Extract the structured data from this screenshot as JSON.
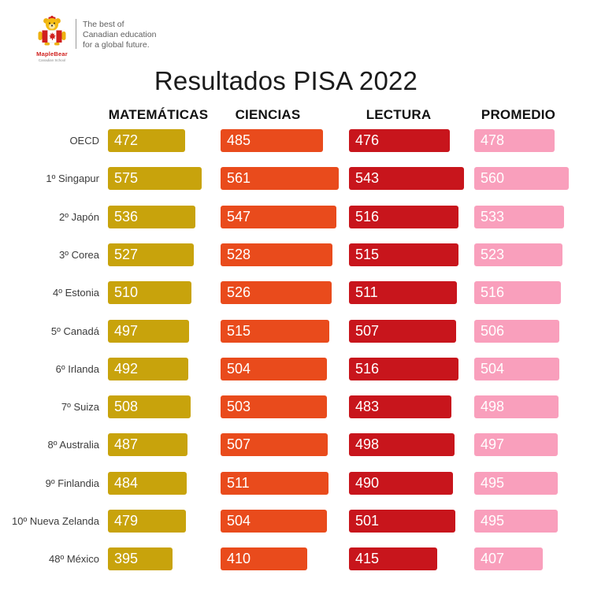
{
  "logo": {
    "brand": "MapleBear",
    "sub_brand": "Canadian School",
    "tagline_line1": "The best of",
    "tagline_line2": "Canadian education",
    "tagline_line3": "for a global future."
  },
  "title": "Resultados PISA 2022",
  "chart_data": {
    "type": "bar",
    "orientation": "horizontal",
    "title": "Resultados PISA 2022",
    "xlabel": "",
    "ylabel": "",
    "legend_position": "top",
    "grid": false,
    "value_labels": "inside-left",
    "categories": [
      "OECD",
      "1º Singapur",
      "2º Japón",
      "3º Corea",
      "4º Estonia",
      "5º Canadá",
      "6º Irlanda",
      "7º Suiza",
      "8º Australia",
      "9º Finlandia",
      "10º Nueva Zelanda",
      "48º México"
    ],
    "series": [
      {
        "name": "MATEMÁTICAS",
        "color": "#c8a30c",
        "values": [
          472,
          575,
          536,
          527,
          510,
          497,
          492,
          508,
          487,
          484,
          479,
          395
        ]
      },
      {
        "name": "CIENCIAS",
        "color": "#e94b1c",
        "values": [
          485,
          561,
          547,
          528,
          526,
          515,
          504,
          503,
          507,
          511,
          504,
          410
        ]
      },
      {
        "name": "LECTURA",
        "color": "#c8151c",
        "values": [
          476,
          543,
          516,
          515,
          511,
          507,
          516,
          483,
          498,
          490,
          501,
          415
        ]
      },
      {
        "name": "PROMEDIO",
        "color": "#f99fbc",
        "values": [
          478,
          560,
          533,
          523,
          516,
          506,
          504,
          498,
          497,
          495,
          495,
          407
        ]
      }
    ]
  }
}
